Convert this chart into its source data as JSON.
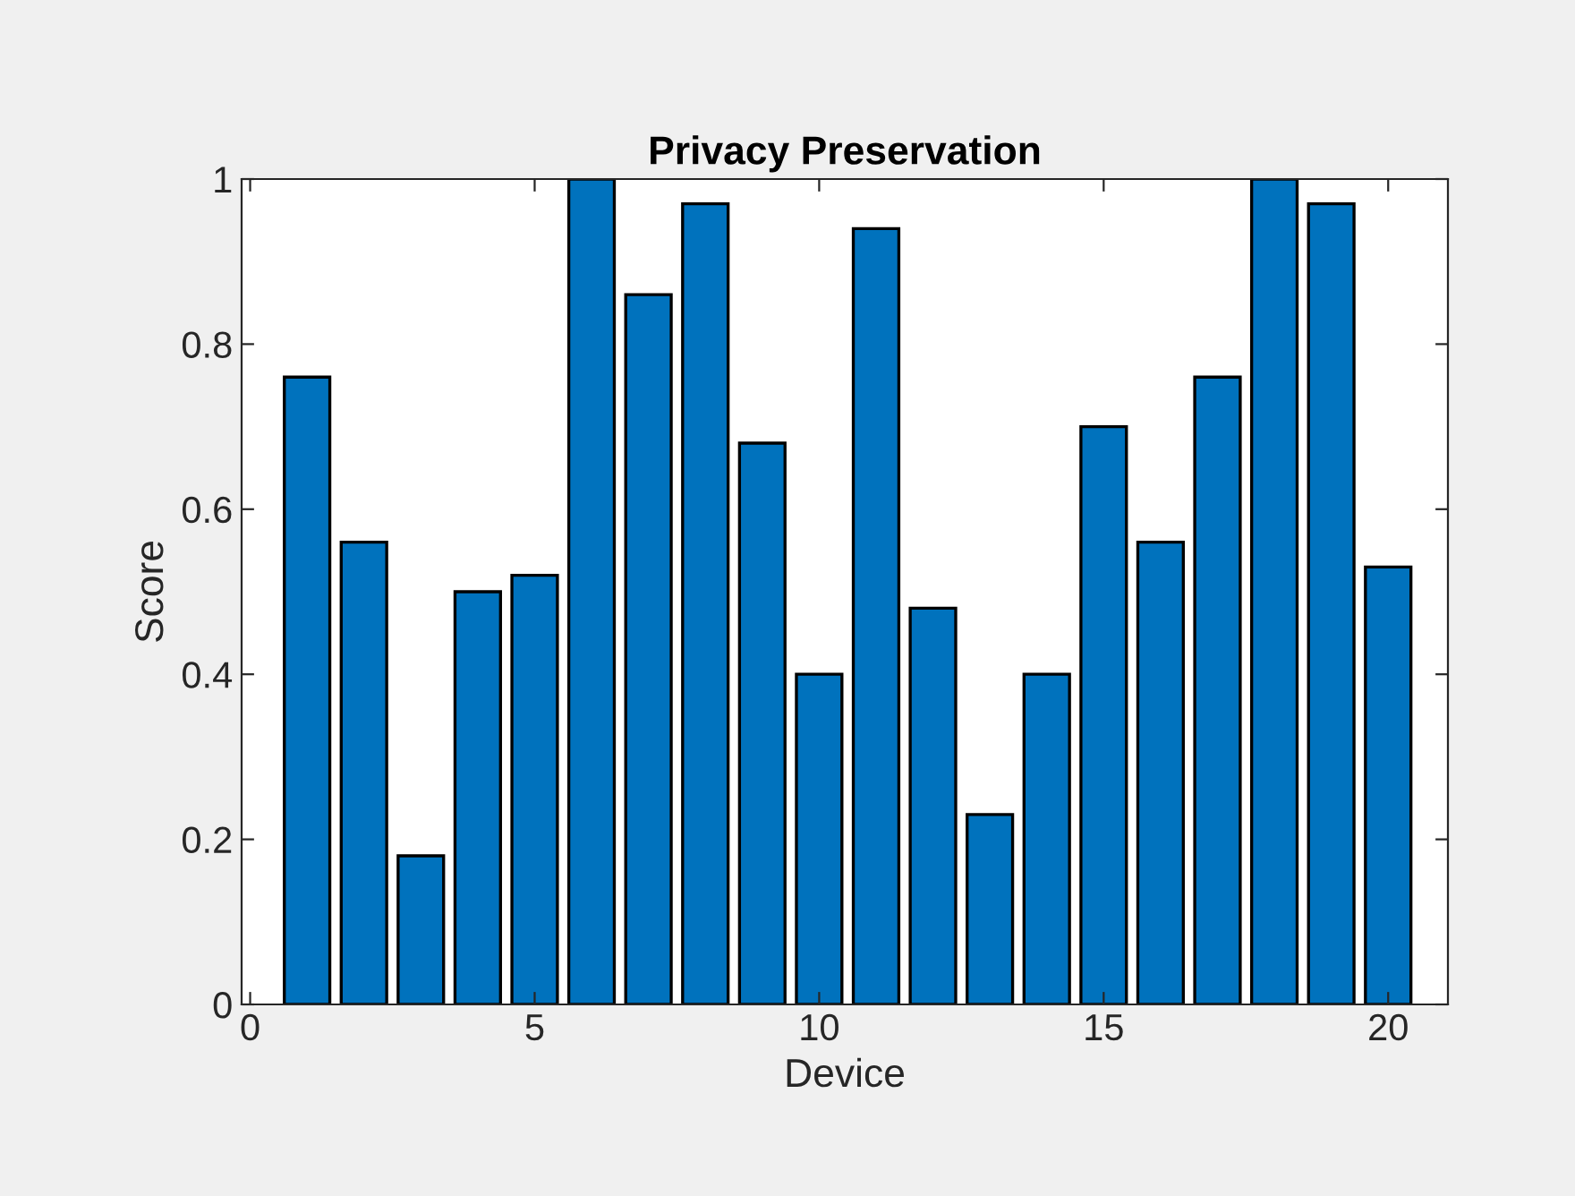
{
  "chart_data": {
    "type": "bar",
    "title": "Privacy Preservation",
    "xlabel": "Device",
    "ylabel": "Score",
    "x": [
      1,
      2,
      3,
      4,
      5,
      6,
      7,
      8,
      9,
      10,
      11,
      12,
      13,
      14,
      15,
      16,
      17,
      18,
      19,
      20
    ],
    "values": [
      0.76,
      0.56,
      0.18,
      0.5,
      0.52,
      1.0,
      0.86,
      0.97,
      0.68,
      0.4,
      0.94,
      0.48,
      0.23,
      0.4,
      0.7,
      0.56,
      0.76,
      1.0,
      0.97,
      0.53
    ],
    "color": "#0072bd",
    "xlim": [
      -0.15,
      21.05
    ],
    "xticks": [
      0,
      5,
      10,
      15,
      20
    ],
    "ylim": [
      0,
      1
    ],
    "yticks": [
      0,
      0.2,
      0.4,
      0.6,
      0.8,
      1
    ],
    "grid": false,
    "legend": false
  }
}
